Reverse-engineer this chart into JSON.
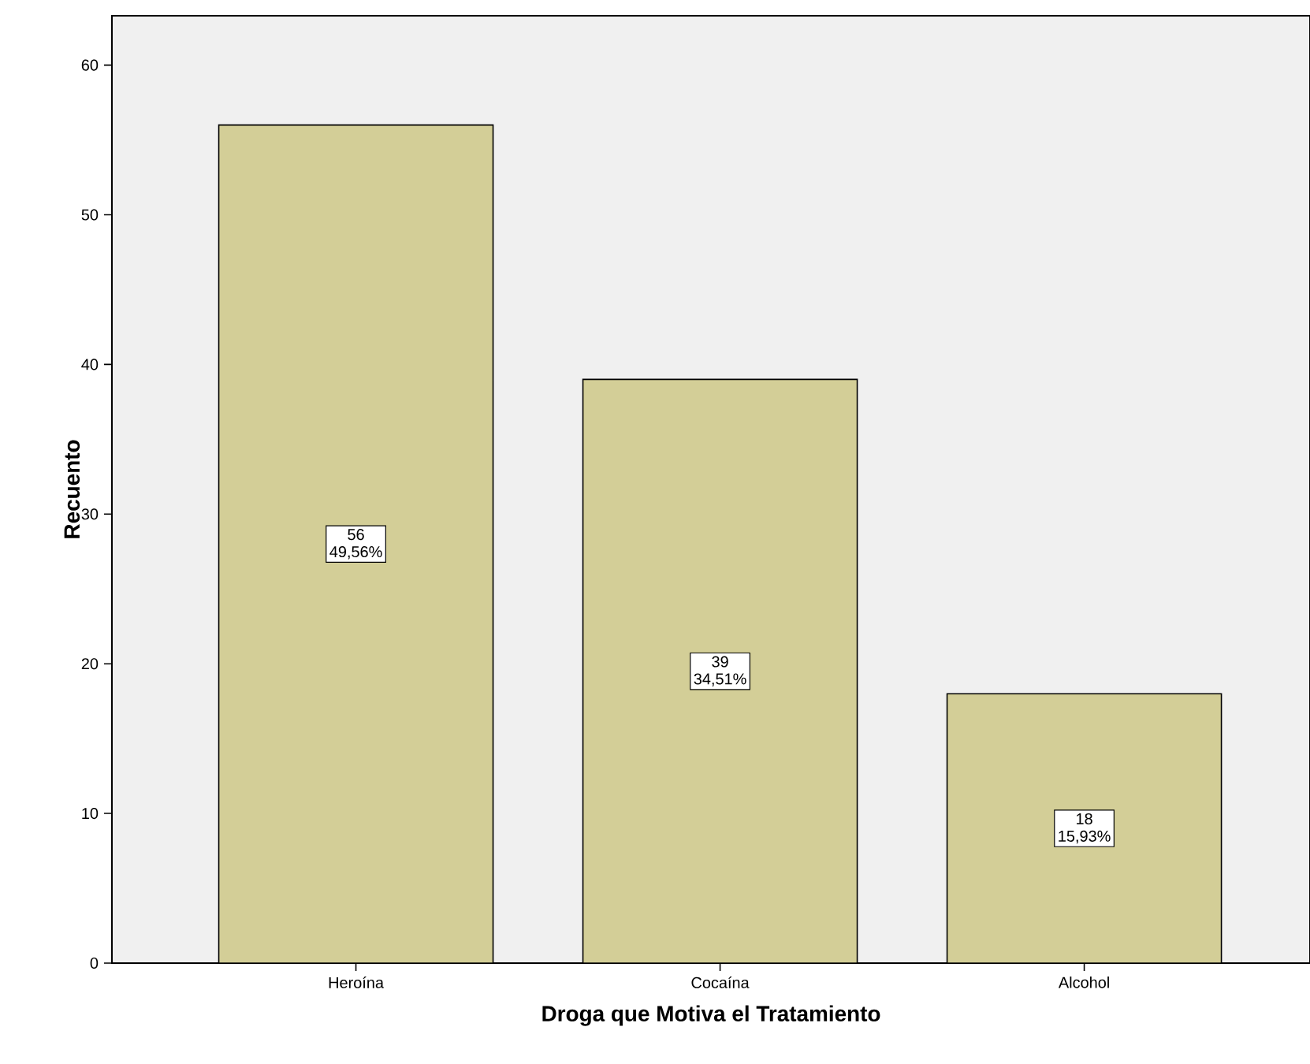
{
  "chart_data": {
    "type": "bar",
    "xlabel": "Droga que Motiva el Tratamiento",
    "ylabel": "Recuento",
    "categories": [
      "Heroína",
      "Cocaína",
      "Alcohol"
    ],
    "values": [
      56,
      39,
      18
    ],
    "color": "#d3ce97",
    "value_labels": [
      "56",
      "39",
      "18"
    ],
    "annotations": [
      "49,56%",
      "34,51%",
      "15,93%"
    ],
    "ylim": [
      0,
      63.3
    ],
    "yticks": [
      0,
      10,
      20,
      30,
      40,
      50,
      60
    ],
    "grid": false
  }
}
